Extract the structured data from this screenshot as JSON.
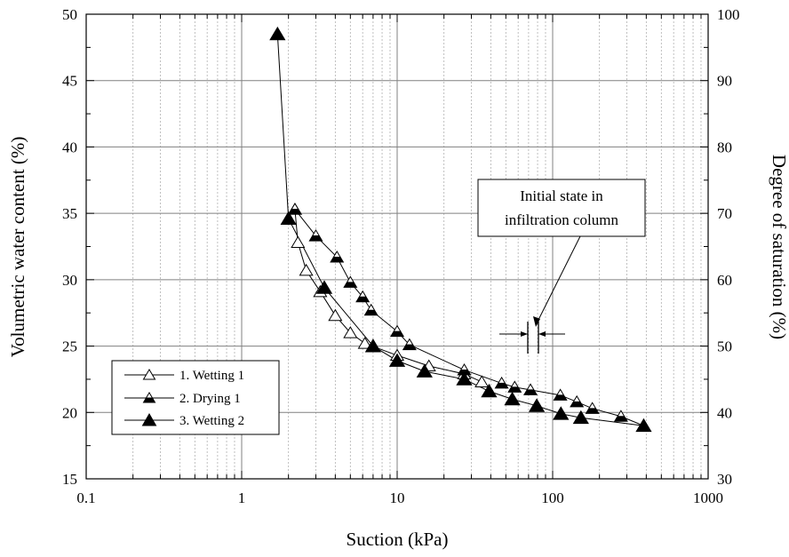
{
  "chart_data": {
    "type": "scatter",
    "xlabel": "Suction (kPa)",
    "ylabel": "Volumetric water content (%)",
    "y2label": "Degree of saturation (%)",
    "x_scale": "log",
    "xlim": [
      0.1,
      1000
    ],
    "ylim": [
      15,
      50
    ],
    "y2lim": [
      30,
      100
    ],
    "x_ticks": [
      "0.1",
      "1",
      "10",
      "100",
      "1000"
    ],
    "y_ticks": [
      "15",
      "20",
      "25",
      "30",
      "35",
      "40",
      "45",
      "50"
    ],
    "y2_ticks": [
      "30",
      "40",
      "50",
      "60",
      "70",
      "80",
      "90",
      "100"
    ],
    "grid": true,
    "legend_position": "bottom-left",
    "series": [
      {
        "name": "1. Wetting 1",
        "marker": "open-triangle",
        "x": [
          2.2,
          2.3,
          2.6,
          3.2,
          4.0,
          5.0,
          6.2,
          10.0,
          16.0,
          27.0,
          35.0
        ],
        "y": [
          35.3,
          32.8,
          30.7,
          29.1,
          27.3,
          26.0,
          25.2,
          24.3,
          23.5,
          22.9,
          22.3
        ]
      },
      {
        "name": "2. Drying 1",
        "marker": "half-filled-triangle",
        "x": [
          2.2,
          3.0,
          4.1,
          5.0,
          6.0,
          6.8,
          10.0,
          12.0,
          27.0,
          47.0,
          57.0,
          72.0,
          112.0,
          143.0,
          180.0,
          275.0,
          385.0
        ],
        "y": [
          35.3,
          33.3,
          31.7,
          29.8,
          28.7,
          27.7,
          26.1,
          25.1,
          23.2,
          22.2,
          21.9,
          21.7,
          21.3,
          20.8,
          20.3,
          19.7,
          19.0
        ]
      },
      {
        "name": "3. Wetting 2",
        "marker": "filled-triangle",
        "x": [
          1.7,
          2.0,
          3.4,
          7.0,
          10.0,
          15.0,
          27.0,
          39.0,
          55.0,
          79.0,
          113.0,
          152.0,
          385.0
        ],
        "y": [
          48.5,
          34.6,
          29.4,
          25.0,
          23.9,
          23.1,
          22.5,
          21.6,
          21.0,
          20.5,
          19.9,
          19.6,
          19.0
        ]
      }
    ],
    "annotations": [
      {
        "text_lines": [
          "Initial state in",
          "infiltration column"
        ],
        "arrow_to": {
          "x": 78,
          "y": 25
        }
      }
    ]
  }
}
